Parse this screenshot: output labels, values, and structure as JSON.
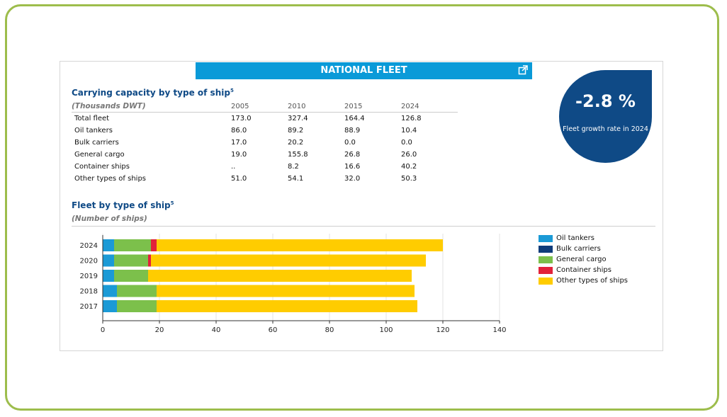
{
  "header": {
    "title": "NATIONAL FLEET"
  },
  "capacity": {
    "title": "Carrying capacity by type of ship",
    "title_sup": "5",
    "unit": "(Thousands DWT)",
    "years": [
      "2005",
      "2010",
      "2015",
      "2024"
    ],
    "rows": [
      {
        "label": "Total fleet",
        "values": [
          "173.0",
          "327.4",
          "164.4",
          "126.8"
        ]
      },
      {
        "label": "Oil tankers",
        "values": [
          "86.0",
          "89.2",
          "88.9",
          "10.4"
        ]
      },
      {
        "label": "Bulk carriers",
        "values": [
          "17.0",
          "20.2",
          "0.0",
          "0.0"
        ]
      },
      {
        "label": "General cargo",
        "values": [
          "19.0",
          "155.8",
          "26.8",
          "26.0"
        ]
      },
      {
        "label": "Container ships",
        "values": [
          "..",
          "8.2",
          "16.6",
          "40.2"
        ]
      },
      {
        "label": "Other types of ships",
        "values": [
          "51.0",
          "54.1",
          "32.0",
          "50.3"
        ]
      }
    ]
  },
  "kpi": {
    "value": "-2.8 %",
    "label": "Fleet growth rate in 2024"
  },
  "fleet": {
    "title": "Fleet by type of ship",
    "title_sup": "5",
    "unit": "(Number of ships)"
  },
  "colors": {
    "oil": "#1b9ad6",
    "bulk": "#0f3c7a",
    "general": "#7cc04b",
    "container": "#e2223a",
    "other": "#ffcc00"
  },
  "chart_data": {
    "type": "bar",
    "orientation": "horizontal",
    "stacked": true,
    "categories": [
      "2024",
      "2020",
      "2019",
      "2018",
      "2017"
    ],
    "series": [
      {
        "name": "Oil tankers",
        "color": "#1b9ad6",
        "values": [
          4,
          4,
          4,
          5,
          5
        ]
      },
      {
        "name": "Bulk carriers",
        "color": "#0f3c7a",
        "values": [
          0,
          0,
          0,
          0,
          0
        ]
      },
      {
        "name": "General cargo",
        "color": "#7cc04b",
        "values": [
          13,
          12,
          12,
          14,
          14
        ]
      },
      {
        "name": "Container ships",
        "color": "#e2223a",
        "values": [
          2,
          1,
          0,
          0,
          0
        ]
      },
      {
        "name": "Other types of ships",
        "color": "#ffcc00",
        "values": [
          101,
          97,
          93,
          91,
          92
        ]
      }
    ],
    "xlim": [
      0,
      140
    ],
    "xticks": [
      "0",
      "20",
      "40",
      "60",
      "80",
      "100",
      "120",
      "140"
    ],
    "grid": true,
    "legend": "right"
  }
}
